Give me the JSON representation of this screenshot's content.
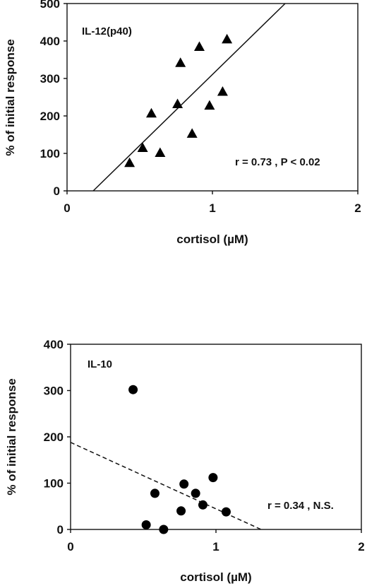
{
  "chart_data": [
    {
      "type": "scatter",
      "marker": "triangle",
      "panel_label": "IL-12(p40)",
      "annotation": "r = 0.73 , P < 0.02",
      "xlabel": "cortisol (µM)",
      "ylabel": "% of initial response",
      "xlim": [
        0,
        2
      ],
      "ylim": [
        0,
        500
      ],
      "xticks": [
        "0",
        "1",
        "2"
      ],
      "yticks": [
        "0",
        "100",
        "200",
        "300",
        "400",
        "500"
      ],
      "x": [
        0.43,
        0.52,
        0.58,
        0.64,
        0.76,
        0.78,
        0.86,
        0.91,
        0.98,
        1.07,
        1.1
      ],
      "y": [
        75,
        115,
        207,
        102,
        232,
        342,
        153,
        385,
        228,
        265,
        405
      ],
      "fit": {
        "style": "solid",
        "x": [
          0.18,
          1.5
        ],
        "y": [
          0,
          500
        ]
      }
    },
    {
      "type": "scatter",
      "marker": "circle",
      "panel_label": "IL-10",
      "annotation": "r = 0.34 , N.S.",
      "xlabel": "cortisol (µM)",
      "ylabel": "% of initial response",
      "xlim": [
        0,
        2
      ],
      "ylim": [
        0,
        400
      ],
      "xticks": [
        "0",
        "1",
        "2"
      ],
      "yticks": [
        "0",
        "100",
        "200",
        "300",
        "400"
      ],
      "x": [
        0.43,
        0.52,
        0.58,
        0.64,
        0.76,
        0.78,
        0.86,
        0.91,
        0.98,
        1.07
      ],
      "y": [
        302,
        10,
        78,
        0,
        40,
        98,
        78,
        53,
        112,
        38
      ],
      "fit": {
        "style": "dashed",
        "x": [
          0.0,
          1.31
        ],
        "y": [
          188,
          0
        ]
      }
    }
  ]
}
